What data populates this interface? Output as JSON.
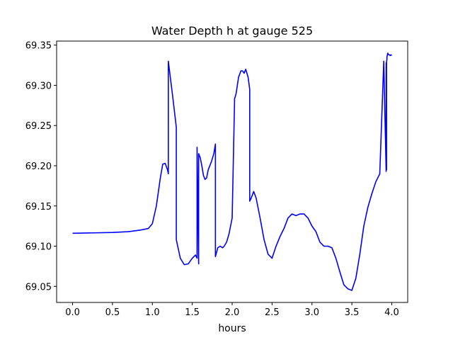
{
  "chart_data": {
    "type": "line",
    "title": "Water Depth h at gauge 525",
    "xlabel": "hours",
    "ylabel": "",
    "xlim": [
      -0.2,
      4.2
    ],
    "ylim": [
      69.03,
      69.355
    ],
    "xticks": [
      {
        "value": 0.0,
        "label": "0.0"
      },
      {
        "value": 0.5,
        "label": "0.5"
      },
      {
        "value": 1.0,
        "label": "1.0"
      },
      {
        "value": 1.5,
        "label": "1.5"
      },
      {
        "value": 2.0,
        "label": "2.0"
      },
      {
        "value": 2.5,
        "label": "2.5"
      },
      {
        "value": 3.0,
        "label": "3.0"
      },
      {
        "value": 3.5,
        "label": "3.5"
      },
      {
        "value": 4.0,
        "label": "4.0"
      }
    ],
    "yticks": [
      {
        "value": 69.05,
        "label": "69.05"
      },
      {
        "value": 69.1,
        "label": "69.10"
      },
      {
        "value": 69.15,
        "label": "69.15"
      },
      {
        "value": 69.2,
        "label": "69.20"
      },
      {
        "value": 69.25,
        "label": "69.25"
      },
      {
        "value": 69.3,
        "label": "69.30"
      },
      {
        "value": 69.35,
        "label": "69.35"
      }
    ],
    "grid": false,
    "legend": "none",
    "series": [
      {
        "color": "#0000ff",
        "x": [
          0.0,
          0.5,
          0.7,
          0.85,
          0.95,
          1.0,
          1.05,
          1.1,
          1.13,
          1.16,
          1.19,
          1.2,
          1.2,
          1.25,
          1.3,
          1.3,
          1.35,
          1.4,
          1.45,
          1.5,
          1.54,
          1.56,
          1.56,
          1.58,
          1.58,
          1.6,
          1.62,
          1.64,
          1.66,
          1.68,
          1.7,
          1.72,
          1.74,
          1.77,
          1.79,
          1.79,
          1.82,
          1.85,
          1.88,
          1.9,
          1.93,
          1.96,
          2.0,
          2.03,
          2.03,
          2.05,
          2.08,
          2.11,
          2.13,
          2.15,
          2.17,
          2.2,
          2.22,
          2.22,
          2.24,
          2.27,
          2.3,
          2.35,
          2.4,
          2.45,
          2.5,
          2.55,
          2.6,
          2.65,
          2.7,
          2.75,
          2.8,
          2.85,
          2.9,
          2.95,
          3.0,
          3.05,
          3.1,
          3.15,
          3.2,
          3.25,
          3.3,
          3.35,
          3.4,
          3.45,
          3.5,
          3.55,
          3.6,
          3.65,
          3.7,
          3.75,
          3.8,
          3.85,
          3.9,
          3.93,
          3.93,
          3.935,
          3.935,
          3.94,
          3.94,
          3.95,
          3.96,
          3.97,
          3.98,
          3.99,
          4.0
        ],
        "y": [
          69.116,
          69.117,
          69.118,
          69.12,
          69.122,
          69.128,
          69.15,
          69.185,
          69.202,
          69.203,
          69.195,
          69.19,
          69.33,
          69.29,
          69.248,
          69.108,
          69.085,
          69.077,
          69.078,
          69.085,
          69.089,
          69.085,
          69.223,
          69.078,
          69.215,
          69.21,
          69.2,
          69.188,
          69.183,
          69.185,
          69.195,
          69.2,
          69.205,
          69.215,
          69.227,
          69.087,
          69.098,
          69.1,
          69.098,
          69.1,
          69.105,
          69.115,
          69.135,
          69.28,
          69.283,
          69.29,
          69.31,
          69.318,
          69.318,
          69.315,
          69.32,
          69.31,
          69.295,
          69.156,
          69.16,
          69.168,
          69.16,
          69.135,
          69.108,
          69.09,
          69.085,
          69.1,
          69.112,
          69.122,
          69.135,
          69.14,
          69.138,
          69.14,
          69.14,
          69.135,
          69.125,
          69.118,
          69.105,
          69.1,
          69.1,
          69.098,
          69.085,
          69.068,
          69.052,
          69.047,
          69.045,
          69.06,
          69.09,
          69.125,
          69.148,
          69.165,
          69.18,
          69.19,
          69.33,
          69.193,
          69.328,
          69.195,
          69.33,
          69.332,
          69.335,
          69.34,
          69.338,
          69.338,
          69.337,
          69.338,
          69.337
        ]
      }
    ]
  }
}
